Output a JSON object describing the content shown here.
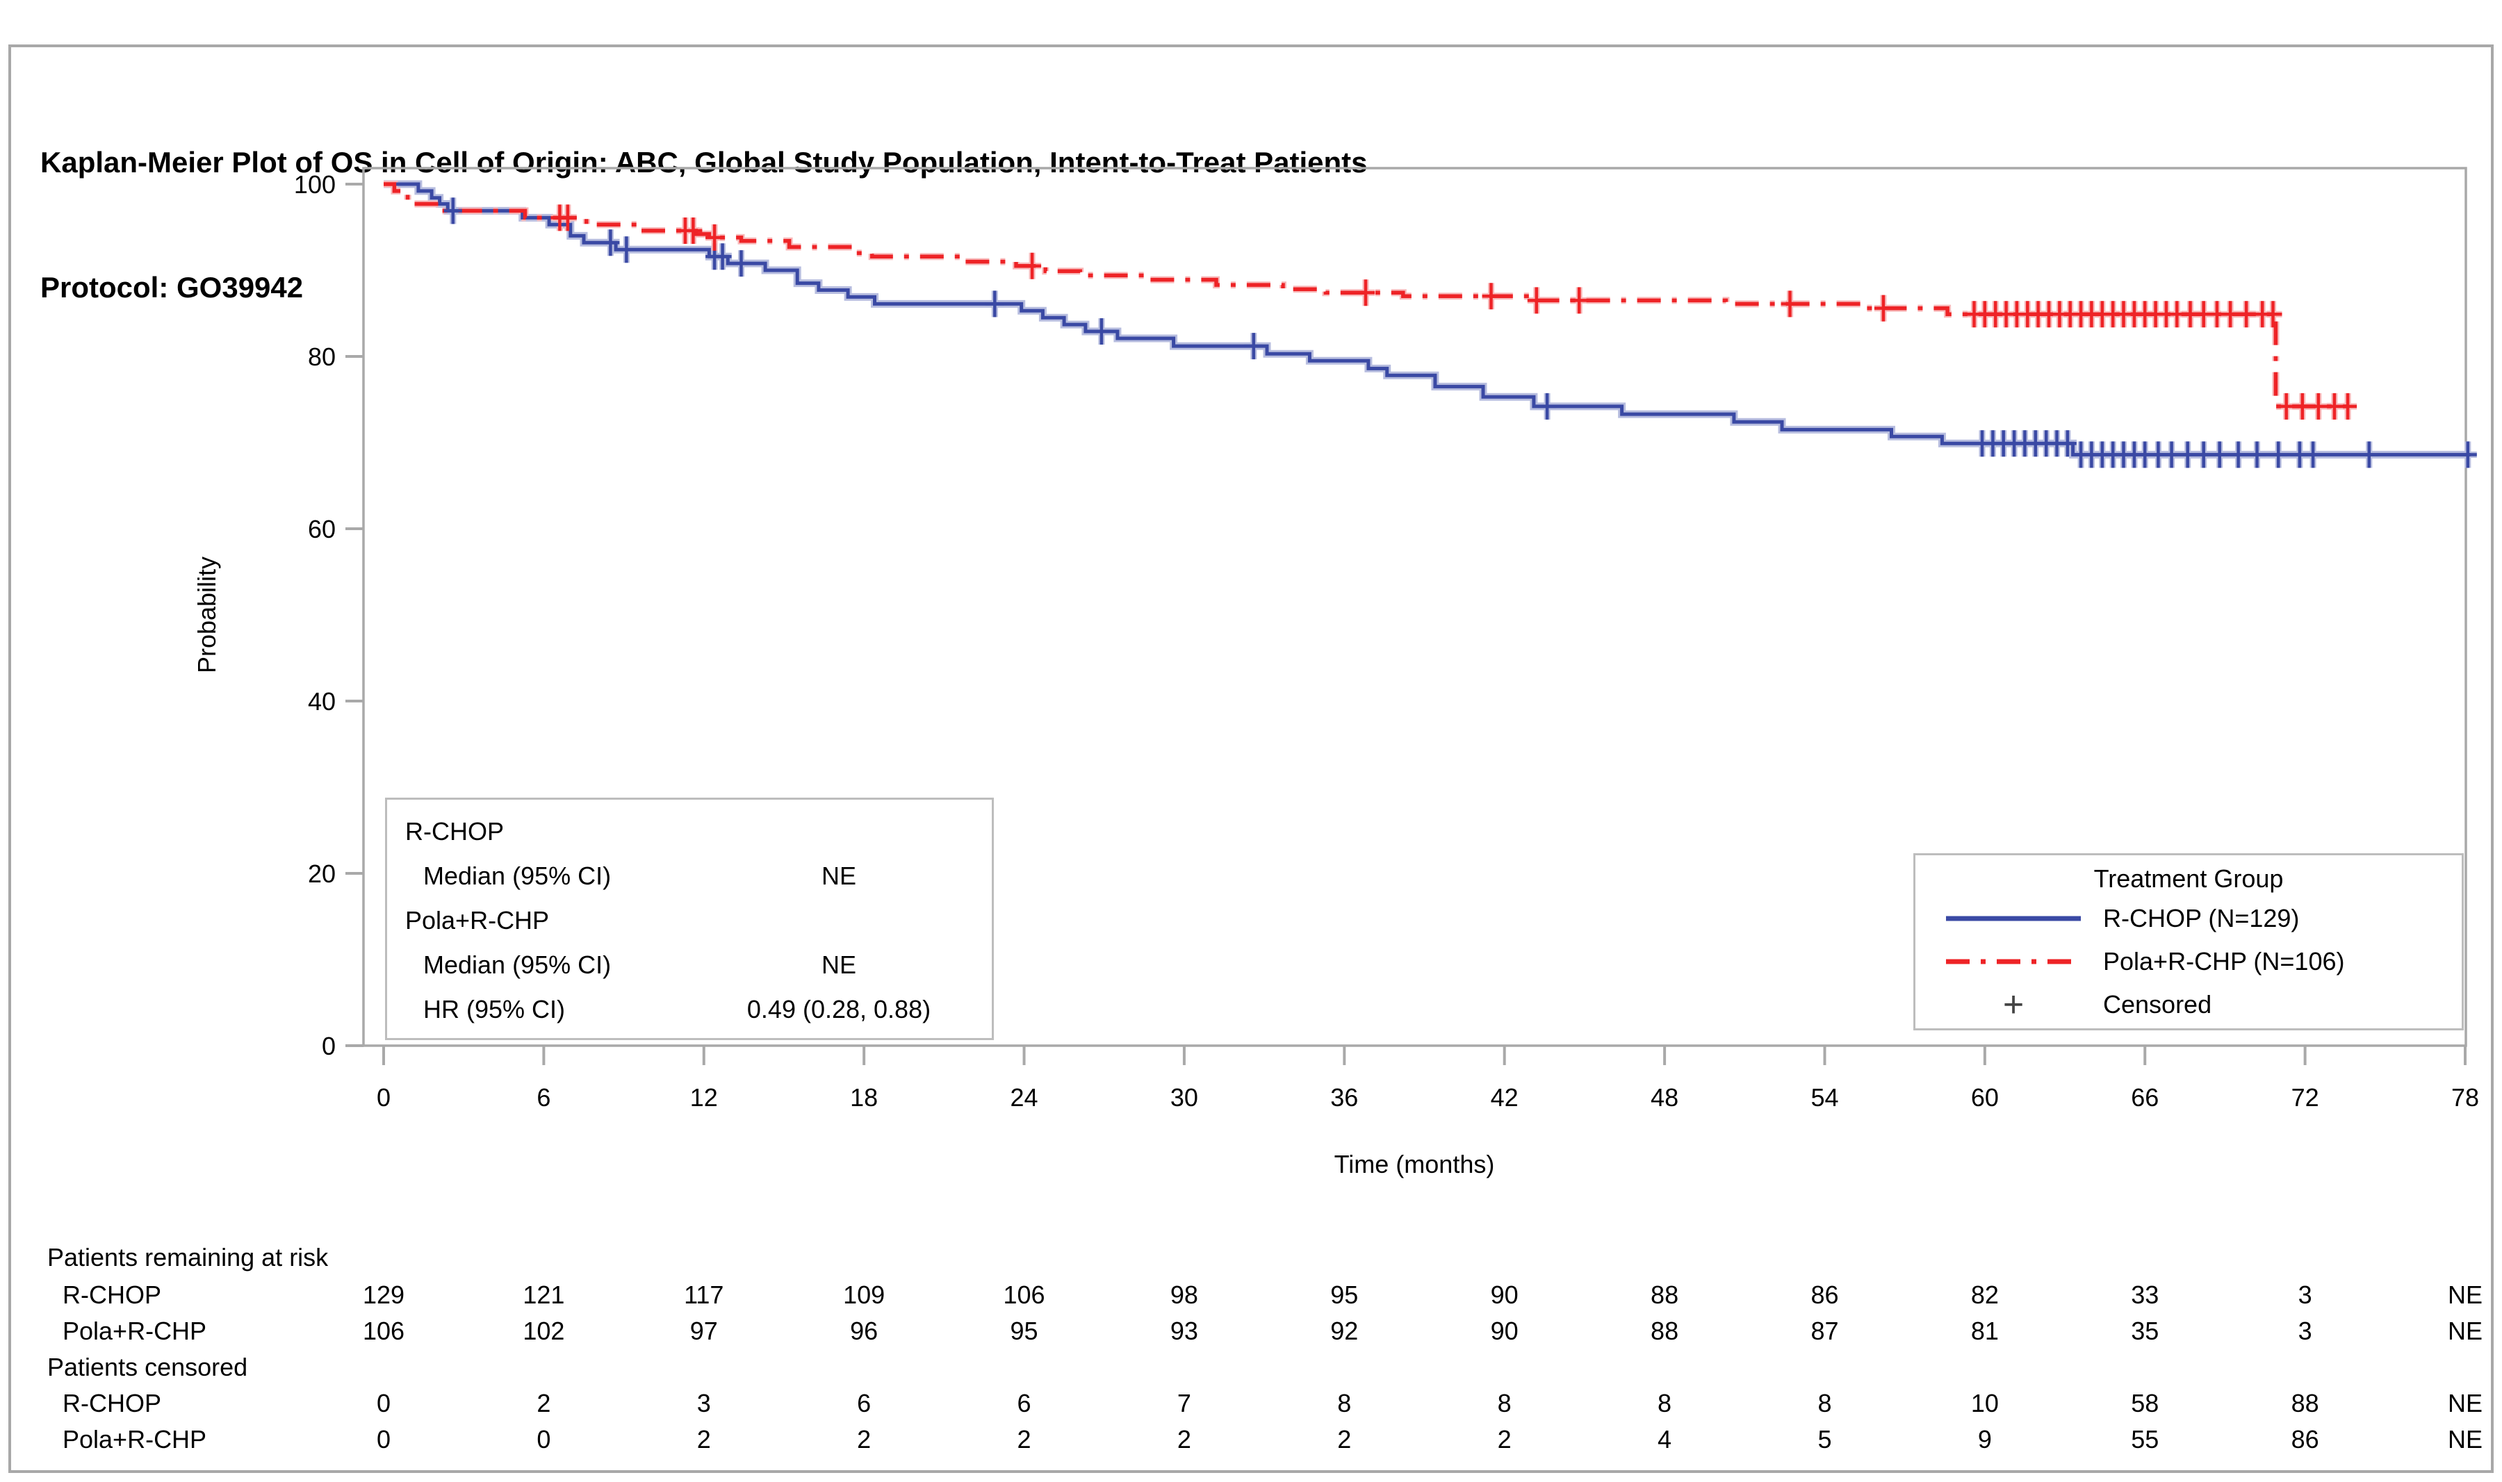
{
  "title": {
    "line1": "Kaplan-Meier Plot of OS in Cell of Origin: ABC, Global Study Population, Intent-to-Treat Patients",
    "line2": "Protocol: GO39942"
  },
  "colors": {
    "rchop": "#3a49a4",
    "rchop_halo": "#b7bddf",
    "pola": "#ee2326",
    "pola_halo": "#f8b9ba",
    "frame": "#a8a8a8",
    "axis": "#a9a9a9",
    "censored_legend": "#444444"
  },
  "axes": {
    "ylabel": "Probability",
    "xlabel": "Time (months)",
    "yticks": [
      0,
      20,
      40,
      60,
      80,
      100
    ],
    "xticks": [
      0,
      6,
      12,
      18,
      24,
      30,
      36,
      42,
      48,
      54,
      60,
      66,
      72,
      78
    ],
    "ylim": [
      0,
      100
    ],
    "xlim": [
      0,
      78
    ],
    "grid": false
  },
  "stats_box": {
    "group1": "R-CHOP",
    "row1_label": "Median (95% CI)",
    "row1_value": "NE",
    "group2": "Pola+R-CHP",
    "row2_label": "Median (95% CI)",
    "row2_value": "NE",
    "row3_label": "HR (95% CI)",
    "row3_value": "0.49 (0.28, 0.88)"
  },
  "legend": {
    "title": "Treatment Group",
    "items": [
      {
        "label": "R-CHOP (N=129)",
        "type": "solid-blue-line"
      },
      {
        "label": "Pola+R-CHP (N=106)",
        "type": "dashdot-red-line"
      },
      {
        "label": "Censored",
        "type": "plus-marker"
      }
    ]
  },
  "risk_table": {
    "section1": "Patients remaining at risk",
    "section2": "Patients censored",
    "at_risk": [
      {
        "label": "R-CHOP",
        "values": [
          "129",
          "121",
          "117",
          "109",
          "106",
          "98",
          "95",
          "90",
          "88",
          "86",
          "82",
          "33",
          "3",
          "NE"
        ]
      },
      {
        "label": "Pola+R-CHP",
        "values": [
          "106",
          "102",
          "97",
          "96",
          "95",
          "93",
          "92",
          "90",
          "88",
          "87",
          "81",
          "35",
          "3",
          "NE"
        ]
      }
    ],
    "censored": [
      {
        "label": "R-CHOP",
        "values": [
          "0",
          "2",
          "3",
          "6",
          "6",
          "7",
          "8",
          "8",
          "8",
          "8",
          "10",
          "58",
          "88",
          "NE"
        ]
      },
      {
        "label": "Pola+R-CHP",
        "values": [
          "0",
          "0",
          "2",
          "2",
          "2",
          "2",
          "2",
          "2",
          "4",
          "5",
          "9",
          "55",
          "86",
          "NE"
        ]
      }
    ]
  },
  "chart_data": {
    "type": "line",
    "subtype": "kaplan-meier-step",
    "title": "Kaplan-Meier Plot of OS in Cell of Origin: ABC, Global Study Population, Intent-to-Treat Patients",
    "xlabel": "Time (months)",
    "ylabel": "Probability",
    "xlim": [
      0,
      78
    ],
    "ylim": [
      0,
      100
    ],
    "legend_position": "lower-right",
    "series": [
      {
        "name": "R-CHOP (N=129)",
        "style": "solid",
        "steps": [
          [
            0,
            100
          ],
          [
            1.3,
            99.2
          ],
          [
            1.8,
            98.4
          ],
          [
            2.1,
            97.7
          ],
          [
            2.4,
            96.9
          ],
          [
            5.2,
            96.1
          ],
          [
            6.2,
            95.3
          ],
          [
            7.0,
            94.0
          ],
          [
            7.5,
            93.2
          ],
          [
            8.7,
            92.4
          ],
          [
            12.2,
            91.6
          ],
          [
            12.9,
            90.8
          ],
          [
            14.3,
            90.0
          ],
          [
            15.5,
            88.5
          ],
          [
            16.3,
            87.7
          ],
          [
            17.4,
            86.9
          ],
          [
            18.4,
            86.1
          ],
          [
            23.9,
            85.3
          ],
          [
            24.7,
            84.5
          ],
          [
            25.5,
            83.7
          ],
          [
            26.3,
            82.9
          ],
          [
            27.5,
            82.1
          ],
          [
            29.6,
            81.2
          ],
          [
            33.1,
            80.3
          ],
          [
            34.7,
            79.5
          ],
          [
            36.9,
            78.6
          ],
          [
            37.6,
            77.8
          ],
          [
            39.4,
            76.5
          ],
          [
            41.2,
            75.3
          ],
          [
            43.1,
            74.2
          ],
          [
            46.4,
            73.3
          ],
          [
            50.6,
            72.4
          ],
          [
            52.4,
            71.5
          ],
          [
            56.5,
            70.7
          ],
          [
            58.4,
            69.9
          ],
          [
            63.3,
            68.6
          ],
          [
            78.2,
            68.6
          ]
        ],
        "censor_times": [
          2.6,
          8.5,
          9.1,
          12.4,
          12.7,
          13.4,
          22.9,
          26.9,
          32.6,
          43.6,
          59.9,
          60.3,
          60.7,
          61.1,
          61.5,
          61.9,
          62.3,
          62.7,
          63.1,
          63.6,
          64.0,
          64.4,
          64.8,
          65.2,
          65.6,
          66.0,
          66.5,
          67.0,
          67.6,
          68.2,
          68.8,
          69.5,
          70.2,
          71.0,
          71.8,
          72.3,
          74.4,
          78.1
        ]
      },
      {
        "name": "Pola+R-CHP (N=106)",
        "style": "dash-dot",
        "steps": [
          [
            0,
            100
          ],
          [
            0.4,
            99.2
          ],
          [
            0.9,
            97.7
          ],
          [
            2.2,
            96.9
          ],
          [
            5.3,
            96.1
          ],
          [
            7.6,
            95.3
          ],
          [
            9.6,
            94.6
          ],
          [
            11.7,
            94.2
          ],
          [
            12.2,
            93.8
          ],
          [
            13.4,
            93.4
          ],
          [
            15.2,
            92.7
          ],
          [
            17.6,
            92.0
          ],
          [
            18.3,
            91.6
          ],
          [
            21.8,
            91.0
          ],
          [
            23.7,
            90.5
          ],
          [
            24.8,
            89.9
          ],
          [
            26.1,
            89.4
          ],
          [
            28.6,
            88.9
          ],
          [
            31.2,
            88.3
          ],
          [
            33.7,
            87.8
          ],
          [
            35.3,
            87.4
          ],
          [
            38.2,
            87.0
          ],
          [
            43.2,
            86.5
          ],
          [
            50.3,
            86.1
          ],
          [
            55.4,
            85.6
          ],
          [
            58.6,
            84.9
          ],
          [
            70.9,
            74.2
          ],
          [
            73.6,
            74.2
          ]
        ],
        "censor_times": [
          6.6,
          6.9,
          11.3,
          11.6,
          12.4,
          24.3,
          36.8,
          41.5,
          43.2,
          44.8,
          52.7,
          56.2,
          59.6,
          60.0,
          60.4,
          60.8,
          61.2,
          61.6,
          62.0,
          62.4,
          62.8,
          63.2,
          63.6,
          64.0,
          64.4,
          64.8,
          65.2,
          65.6,
          66.0,
          66.4,
          66.8,
          67.2,
          67.7,
          68.2,
          68.7,
          69.2,
          69.8,
          70.4,
          70.8,
          71.3,
          71.9,
          72.5,
          73.1,
          73.6
        ]
      }
    ]
  }
}
